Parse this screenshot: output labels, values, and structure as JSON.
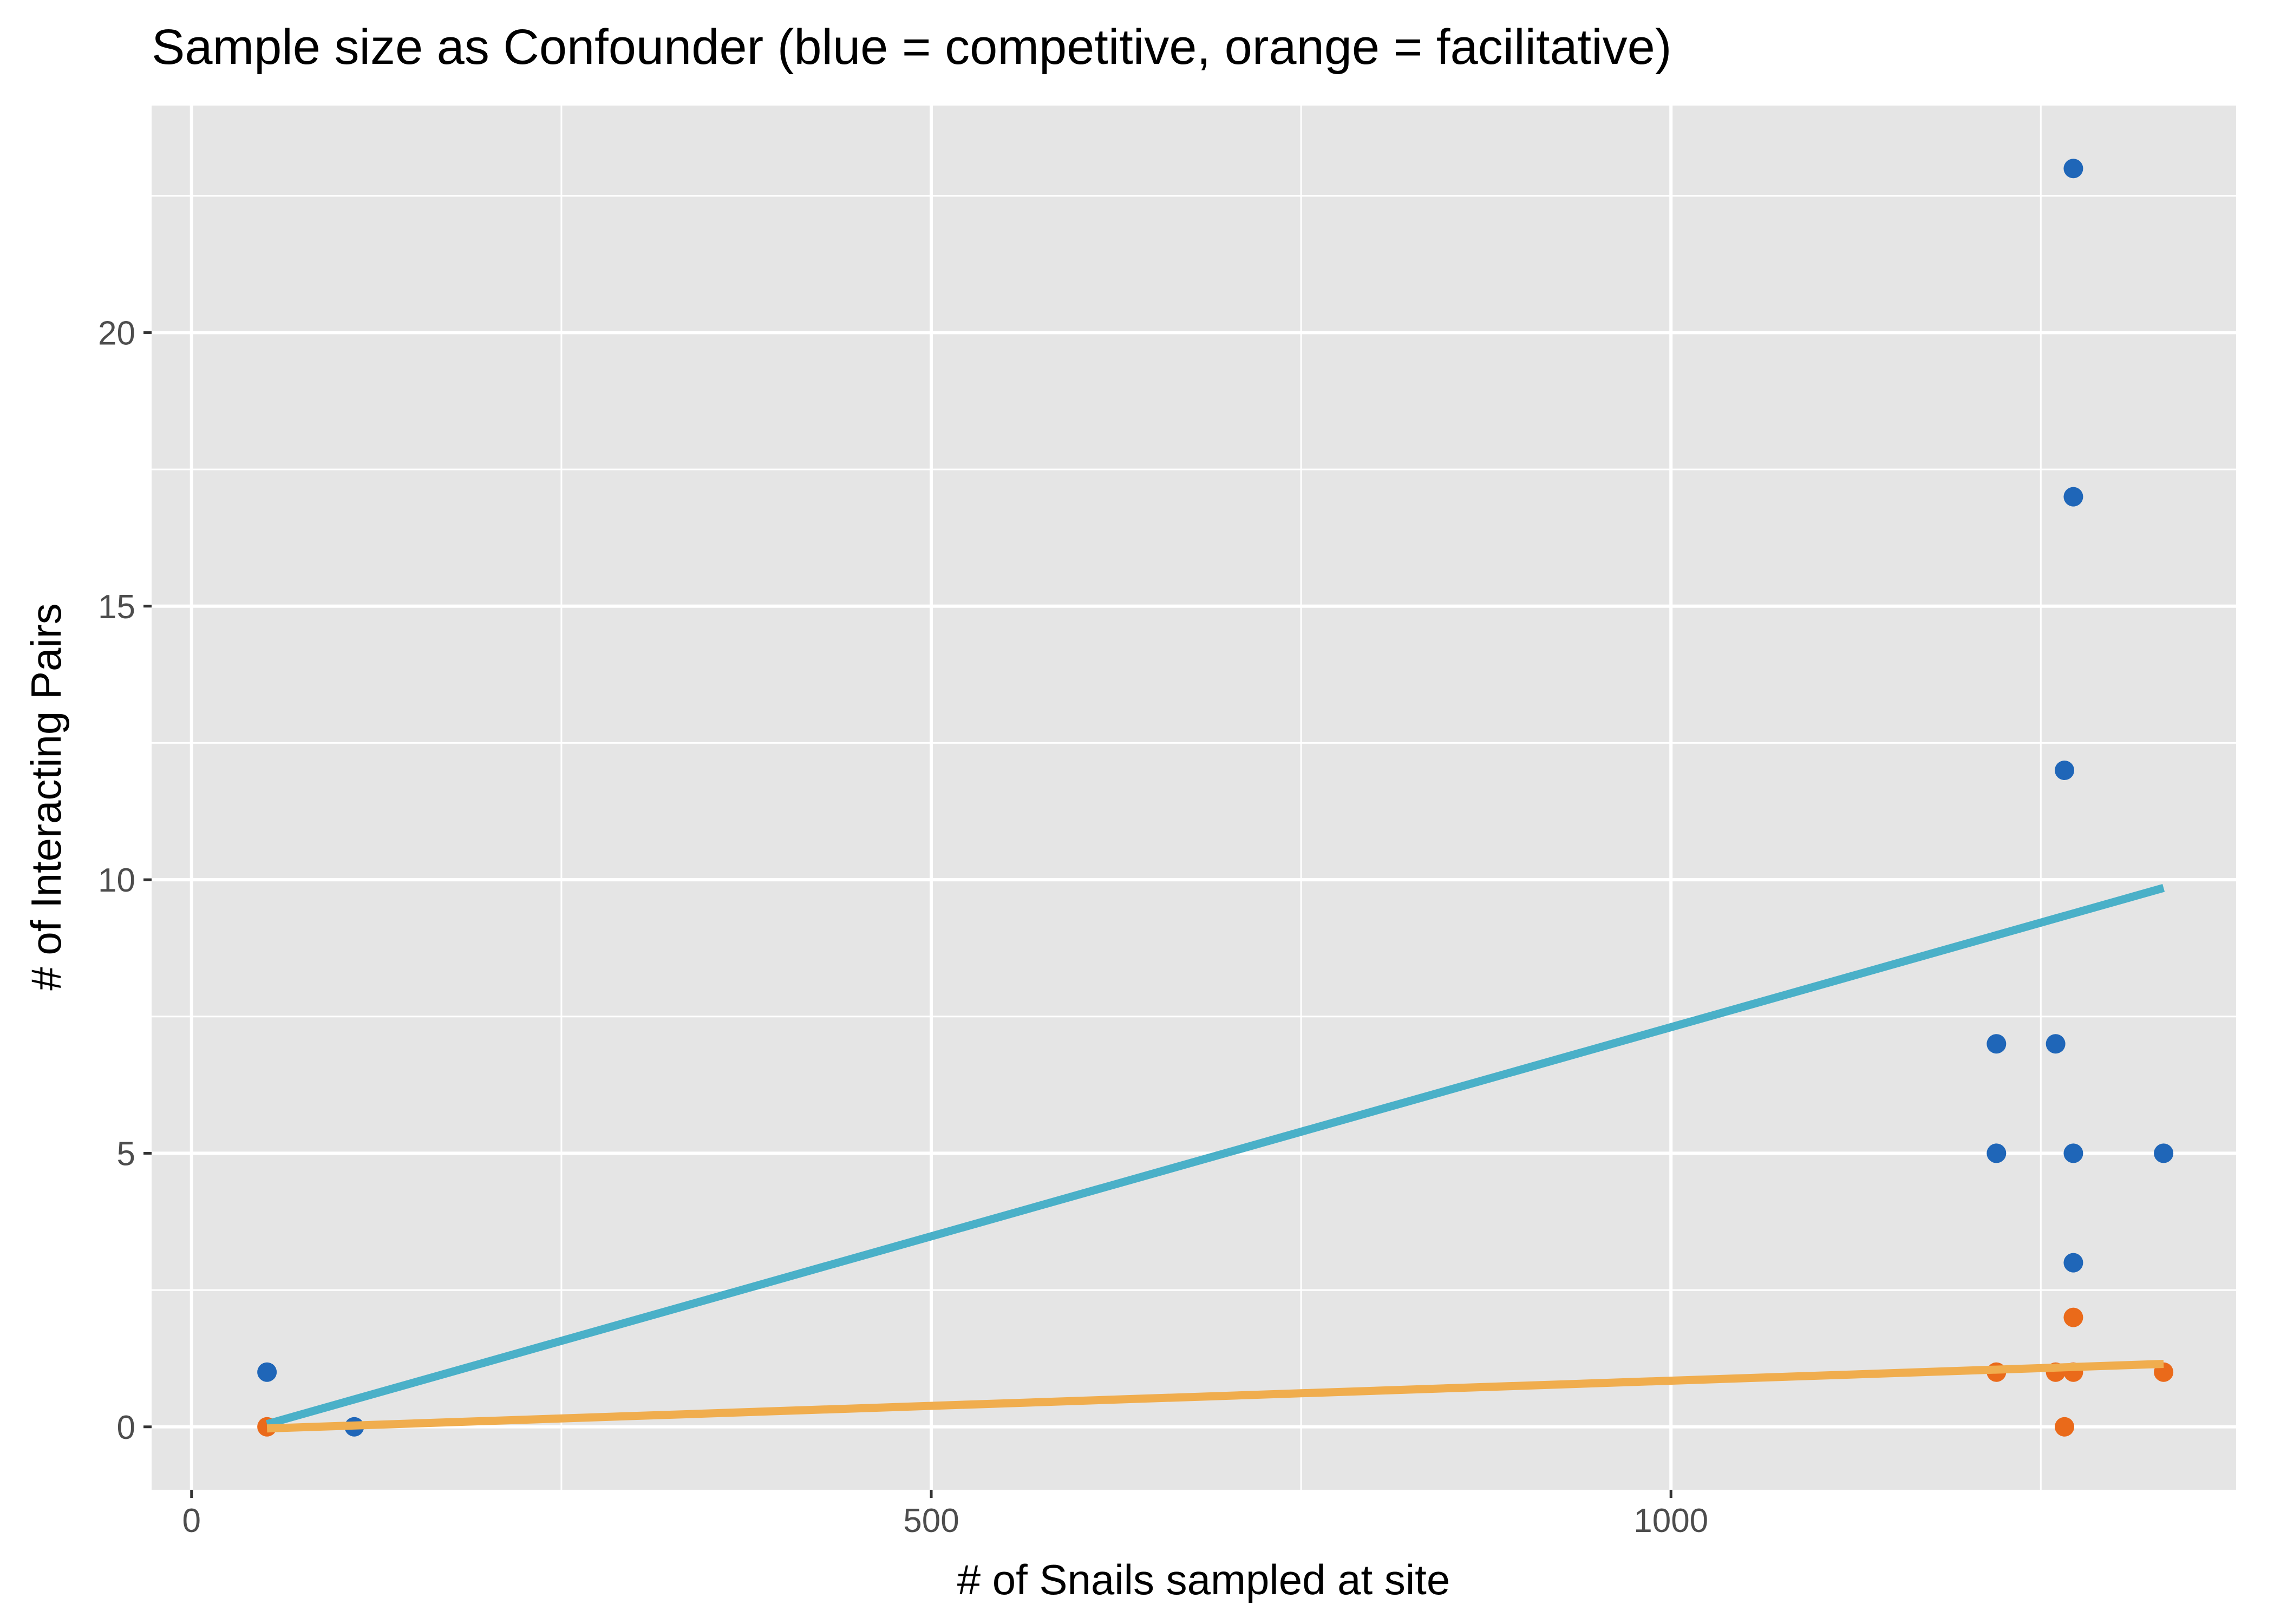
{
  "chart_data": {
    "type": "scatter",
    "title": "Sample size as Confounder  (blue = competitive, orange = facilitative)",
    "xlabel": "# of Snails sampled at site",
    "ylabel": "# of Interacting Pairs",
    "xlim": [
      -27,
      1382
    ],
    "ylim": [
      -1.15,
      24.15
    ],
    "x_ticks": [
      0,
      500,
      1000
    ],
    "x_tick_labels": [
      "0",
      "500",
      "1000"
    ],
    "y_ticks": [
      0,
      5,
      10,
      15,
      20
    ],
    "y_tick_labels": [
      "0",
      "5",
      "10",
      "15",
      "20"
    ],
    "grid": true,
    "legend": "none",
    "colors": {
      "panel_background": "#e5e5e5",
      "grid": "#ffffff",
      "competitive_points": "#1f66b8",
      "facilitative_points": "#ea6a1a",
      "competitive_line": "#4ab0c8",
      "facilitative_line": "#f0ad4e"
    },
    "series": [
      {
        "kind": "points",
        "color_key": "competitive_points",
        "points": [
          {
            "x": 51,
            "y": 1
          },
          {
            "x": 110,
            "y": 0
          },
          {
            "x": 1220,
            "y": 7
          },
          {
            "x": 1220,
            "y": 5
          },
          {
            "x": 1260,
            "y": 7
          },
          {
            "x": 1266,
            "y": 12
          },
          {
            "x": 1272,
            "y": 23
          },
          {
            "x": 1272,
            "y": 17
          },
          {
            "x": 1272,
            "y": 5
          },
          {
            "x": 1272,
            "y": 3
          },
          {
            "x": 1333,
            "y": 5
          }
        ]
      },
      {
        "kind": "points",
        "color_key": "facilitative_points",
        "points": [
          {
            "x": 51,
            "y": 0
          },
          {
            "x": 1220,
            "y": 1
          },
          {
            "x": 1260,
            "y": 1
          },
          {
            "x": 1266,
            "y": 0
          },
          {
            "x": 1272,
            "y": 2
          },
          {
            "x": 1272,
            "y": 1
          },
          {
            "x": 1333,
            "y": 1
          }
        ]
      },
      {
        "kind": "line",
        "color_key": "competitive_line",
        "points": [
          {
            "x": 51,
            "y": 0.05
          },
          {
            "x": 1333,
            "y": 9.85
          }
        ]
      },
      {
        "kind": "line",
        "color_key": "facilitative_line",
        "points": [
          {
            "x": 51,
            "y": -0.03
          },
          {
            "x": 1333,
            "y": 1.15
          }
        ]
      }
    ]
  }
}
